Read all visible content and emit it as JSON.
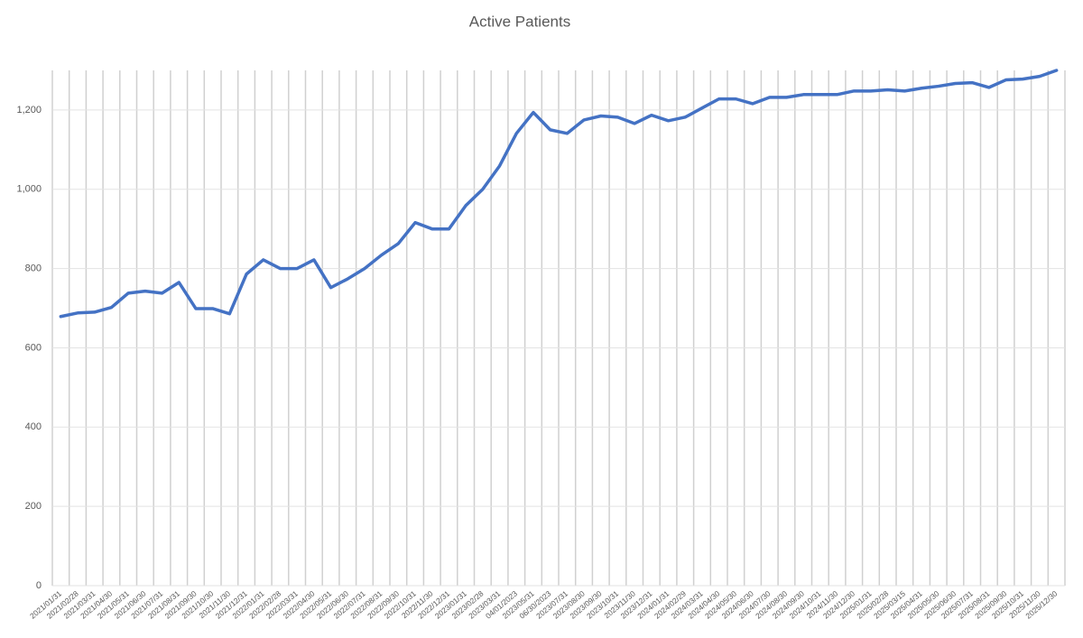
{
  "chart_data": {
    "type": "line",
    "title": "Active Patients",
    "categories": [
      "2021/01/31",
      "2021/02/28",
      "2021/03/31",
      "2021/04/30",
      "2021/05/31",
      "2021/06/30",
      "2021/07/31",
      "2021/08/31",
      "2021/09/30",
      "2021/10/30",
      "2021/11/30",
      "2021/12/31",
      "2022/01/31",
      "2022/02/28",
      "2022/03/31",
      "2022/04/30",
      "2022/05/31",
      "2022/06/30",
      "2022/07/31",
      "2022/08/31",
      "2022/09/30",
      "2022/10/31",
      "2022/11/30",
      "2022/12/31",
      "2023/01/31",
      "2023/02/28",
      "2023/03/31",
      "04/01/2023",
      "2023/05/31",
      "06/30/2023",
      "2023/07/31",
      "2023/08/30",
      "2023/09/30",
      "2023/10/31",
      "2023/11/30",
      "2023/12/31",
      "2024/01/31",
      "2024/02/29",
      "2024/03/31",
      "2024/04/30",
      "2024/05/30",
      "2024/06/30",
      "2024/07/30",
      "2024/08/30",
      "2024/09/30",
      "2024/10/31",
      "2024/11/30",
      "2024/12/30",
      "2025/01/31",
      "2025/02/28",
      "2025/03/15",
      "2025/04/31",
      "2025/05/30",
      "2025/06/30",
      "2025/07/31",
      "2025/08/31",
      "2025/09/30",
      "2025/10/31",
      "2025/11/30",
      "2025/12/30"
    ],
    "series": [
      {
        "name": "Active Patients",
        "color": "#4472c4",
        "values": [
          679,
          688,
          690,
          702,
          738,
          743,
          738,
          765,
          699,
          699,
          686,
          786,
          822,
          800,
          800,
          822,
          752,
          774,
          800,
          834,
          863,
          916,
          900,
          900,
          959,
          1000,
          1059,
          1141,
          1194,
          1150,
          1141,
          1175,
          1185,
          1182,
          1166,
          1187,
          1173,
          1182,
          1205,
          1228,
          1228,
          1216,
          1232,
          1232,
          1239,
          1239,
          1239,
          1248,
          1248,
          1251,
          1248,
          1255,
          1260,
          1267,
          1269,
          1257,
          1276,
          1278,
          1285,
          1300
        ]
      }
    ],
    "ylim": [
      0,
      1300
    ],
    "yticks": [
      0,
      200,
      400,
      600,
      800,
      {
        "value": 1000,
        "label": "1,000"
      },
      {
        "value": 1200,
        "label": "1,200"
      }
    ],
    "grid": true
  }
}
